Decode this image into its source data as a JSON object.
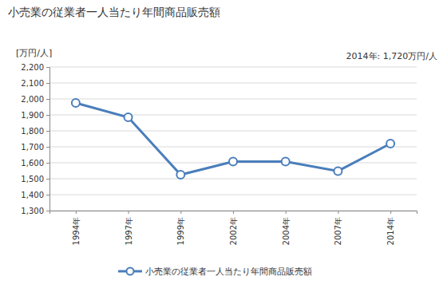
{
  "chart_data": {
    "type": "line",
    "title": "小売業の従業者一人当たり年間商品販売額",
    "y_label": "[万円/人]",
    "annotation": "2014年: 1,720万円/人",
    "categories": [
      "1994年",
      "1997年",
      "1999年",
      "2002年",
      "2004年",
      "2007年",
      "2014年"
    ],
    "series": [
      {
        "name": "小売業の従業者一人当たり年間商品販売額",
        "color": "#4a7ebb",
        "marker": "circle",
        "values": [
          1975,
          1885,
          1525,
          1607,
          1607,
          1548,
          1720
        ]
      }
    ],
    "ylim": [
      1300,
      2200
    ],
    "yticks": [
      {
        "value": 1300,
        "label": "1,300"
      },
      {
        "value": 1400,
        "label": "1,400"
      },
      {
        "value": 1500,
        "label": "1,500"
      },
      {
        "value": 1600,
        "label": "1,600"
      },
      {
        "value": 1700,
        "label": "1,700"
      },
      {
        "value": 1800,
        "label": "1,800"
      },
      {
        "value": 1900,
        "label": "1,900"
      },
      {
        "value": 2000,
        "label": "2,000"
      },
      {
        "value": 2100,
        "label": "2,100"
      },
      {
        "value": 2200,
        "label": "2,200"
      }
    ],
    "grid": true,
    "legend": "bottom"
  }
}
